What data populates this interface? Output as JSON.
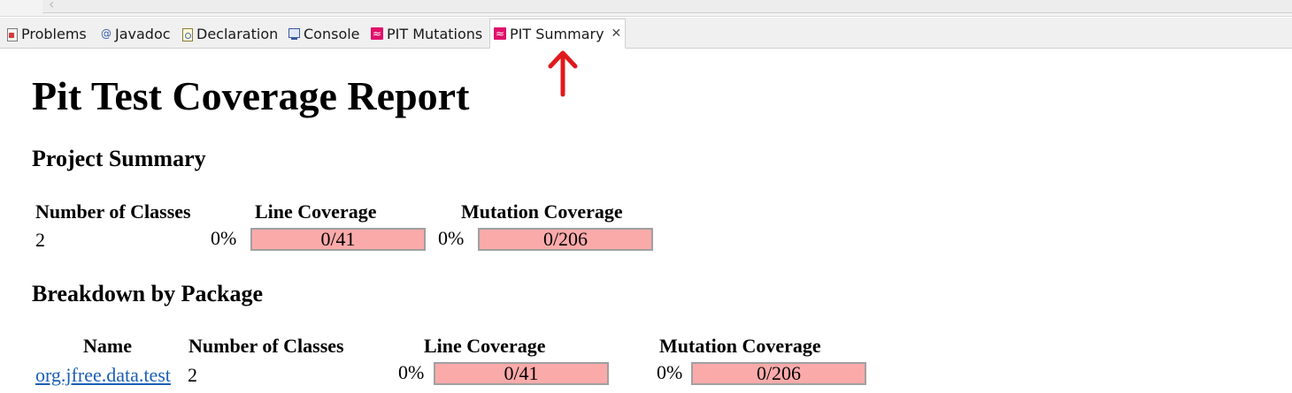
{
  "tabs": [
    {
      "label": "Problems",
      "icon": "problems-icon"
    },
    {
      "label": "Javadoc",
      "icon": "javadoc-icon"
    },
    {
      "label": "Declaration",
      "icon": "declaration-icon"
    },
    {
      "label": "Console",
      "icon": "console-icon"
    },
    {
      "label": "PIT Mutations",
      "icon": "pit-icon"
    },
    {
      "label": "PIT Summary",
      "icon": "pit-icon",
      "active": true
    }
  ],
  "report": {
    "title": "Pit Test Coverage Report",
    "project_summary": {
      "heading": "Project Summary",
      "headers": {
        "classes": "Number of Classes",
        "line": "Line Coverage",
        "mutation": "Mutation Coverage"
      },
      "row": {
        "classes": "2",
        "line_pct": "0%",
        "line_ratio": "0/41",
        "mutation_pct": "0%",
        "mutation_ratio": "0/206"
      }
    },
    "breakdown": {
      "heading": "Breakdown by Package",
      "headers": {
        "name": "Name",
        "classes": "Number of Classes",
        "line": "Line Coverage",
        "mutation": "Mutation Coverage"
      },
      "rows": [
        {
          "name": "org.jfree.data.test",
          "classes": "2",
          "line_pct": "0%",
          "line_ratio": "0/41",
          "mutation_pct": "0%",
          "mutation_ratio": "0/206"
        }
      ]
    }
  },
  "colors": {
    "coverage_bar": "#fbaaaa",
    "pit_icon": "#e0106a",
    "annotation_arrow": "#e0191c"
  }
}
